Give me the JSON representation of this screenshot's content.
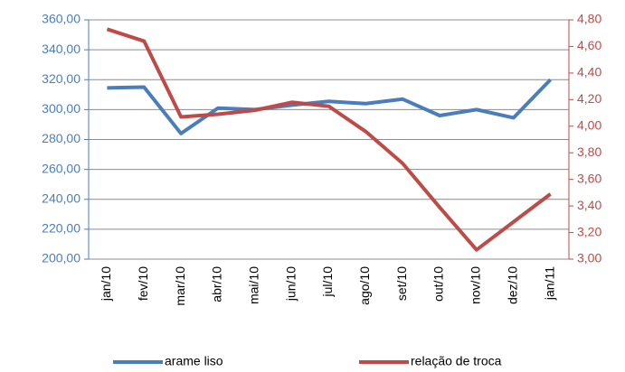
{
  "chart_data": {
    "type": "line",
    "categories": [
      "jan/10",
      "fev/10",
      "mar/10",
      "abr/10",
      "mai/10",
      "jun/10",
      "jul/10",
      "ago/10",
      "set/10",
      "out/10",
      "nov/10",
      "dez/10",
      "jan/11"
    ],
    "series": [
      {
        "name": "arame liso",
        "color": "#4a7ebb",
        "values": [
          314.5,
          315,
          284,
          301,
          300,
          303,
          305.5,
          304,
          307,
          296,
          300,
          294.5,
          320
        ]
      },
      {
        "name": "relação de troca",
        "color": "#be4b48",
        "axis": "y2",
        "values": [
          4.73,
          4.64,
          4.07,
          4.09,
          4.12,
          4.18,
          4.15,
          3.96,
          3.72,
          3.39,
          3.07,
          3.28,
          3.49
        ]
      }
    ],
    "ylim": [
      200,
      360
    ],
    "yticks": [
      {
        "value": 200,
        "label": "200,00"
      },
      {
        "value": 220,
        "label": "220,00"
      },
      {
        "value": 240,
        "label": "240,00"
      },
      {
        "value": 260,
        "label": "260,00"
      },
      {
        "value": 280,
        "label": "280,00"
      },
      {
        "value": 300,
        "label": "300,00"
      },
      {
        "value": 320,
        "label": "320,00"
      },
      {
        "value": 340,
        "label": "340,00"
      },
      {
        "value": 360,
        "label": "360,00"
      }
    ],
    "y2lim": [
      3.0,
      4.8
    ],
    "y2ticks": [
      {
        "value": 3.0,
        "label": "3,00"
      },
      {
        "value": 3.2,
        "label": "3,20"
      },
      {
        "value": 3.4,
        "label": "3,40"
      },
      {
        "value": 3.6,
        "label": "3,60"
      },
      {
        "value": 3.8,
        "label": "3,80"
      },
      {
        "value": 4.0,
        "label": "4,00"
      },
      {
        "value": 4.2,
        "label": "4,20"
      },
      {
        "value": 4.4,
        "label": "4,40"
      },
      {
        "value": 4.6,
        "label": "4,60"
      },
      {
        "value": 4.8,
        "label": "4,80"
      }
    ],
    "grid": true,
    "legend": "bottom"
  }
}
